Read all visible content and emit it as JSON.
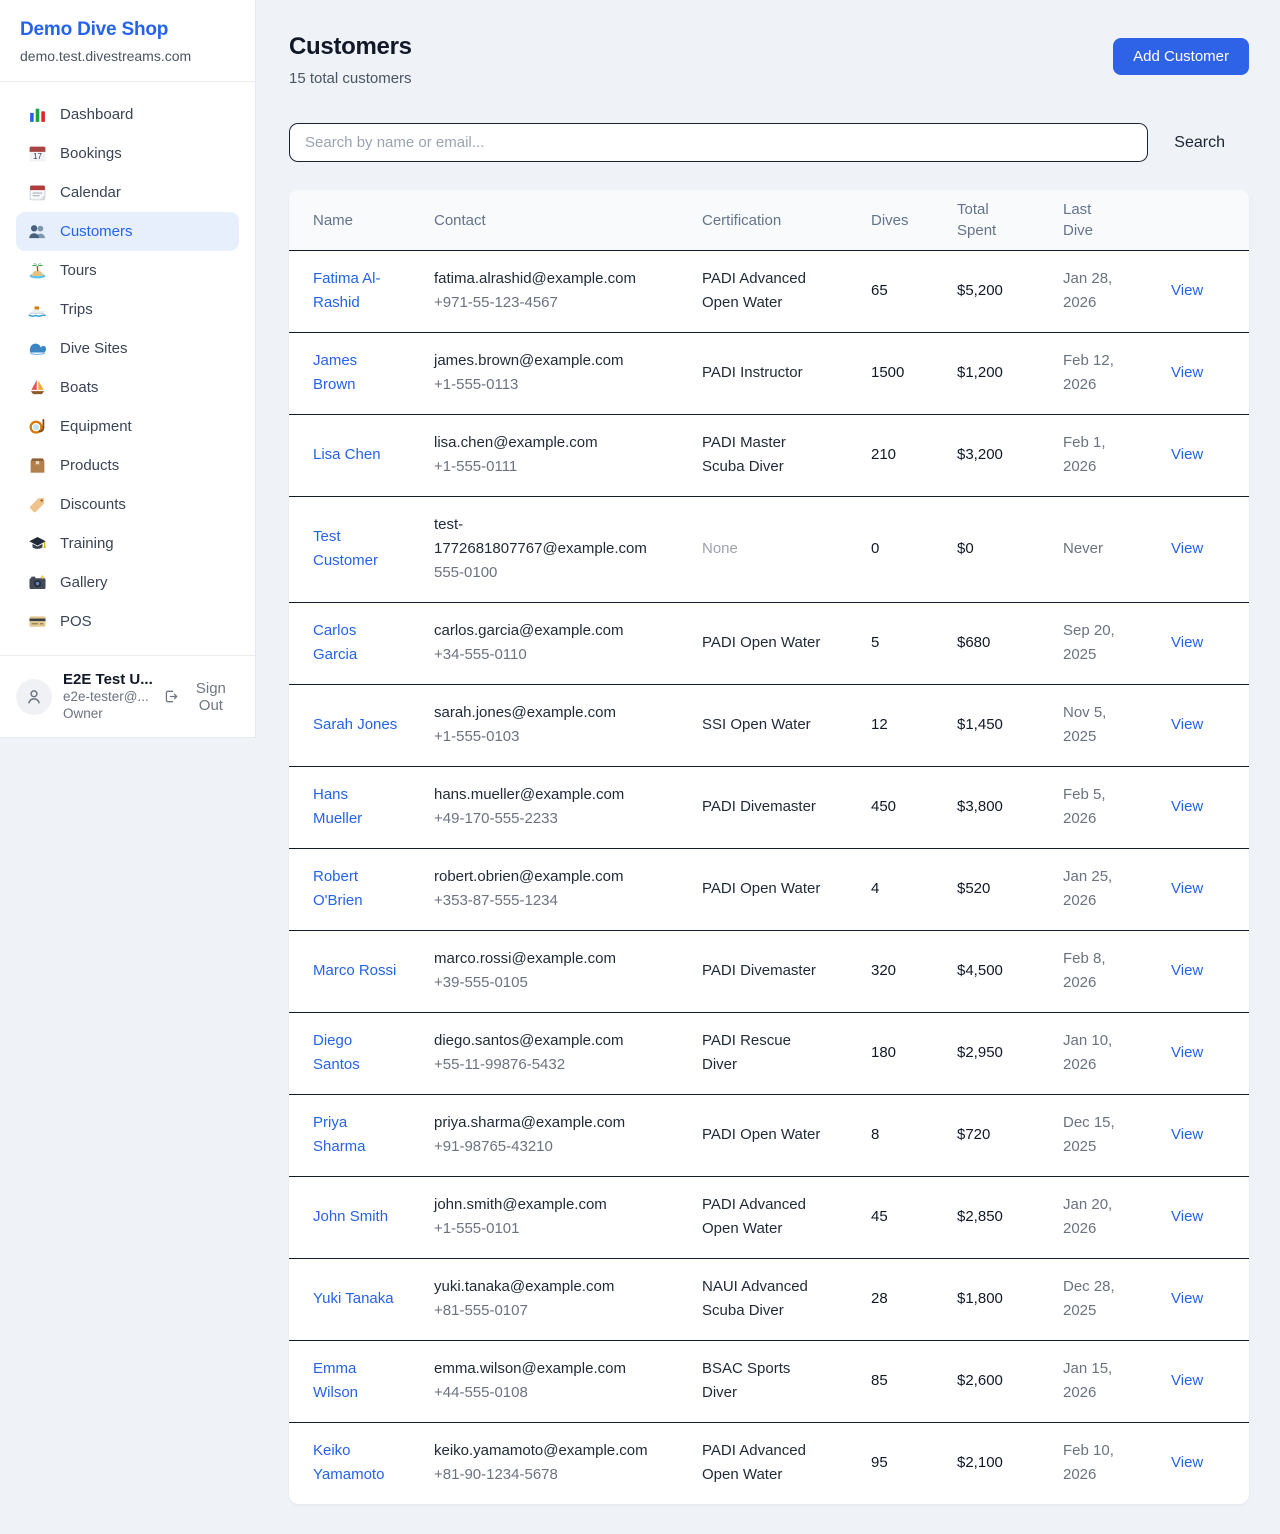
{
  "sidebar": {
    "title": "Demo Dive Shop",
    "domain": "demo.test.divestreams.com",
    "items": [
      {
        "icon": "bar-chart-icon",
        "label": "Dashboard",
        "active": false
      },
      {
        "icon": "calendar-date-icon",
        "label": "Bookings",
        "active": false
      },
      {
        "icon": "calendar-icon",
        "label": "Calendar",
        "active": false
      },
      {
        "icon": "people-icon",
        "label": "Customers",
        "active": true
      },
      {
        "icon": "island-icon",
        "label": "Tours",
        "active": false
      },
      {
        "icon": "speedboat-icon",
        "label": "Trips",
        "active": false
      },
      {
        "icon": "wave-icon",
        "label": "Dive Sites",
        "active": false
      },
      {
        "icon": "sailboat-icon",
        "label": "Boats",
        "active": false
      },
      {
        "icon": "dive-mask-icon",
        "label": "Equipment",
        "active": false
      },
      {
        "icon": "package-icon",
        "label": "Products",
        "active": false
      },
      {
        "icon": "tag-icon",
        "label": "Discounts",
        "active": false
      },
      {
        "icon": "graduation-cap-icon",
        "label": "Training",
        "active": false
      },
      {
        "icon": "camera-icon",
        "label": "Gallery",
        "active": false
      },
      {
        "icon": "credit-card-icon",
        "label": "POS",
        "active": false
      }
    ],
    "user": {
      "name": "E2E Test U...",
      "email": "e2e-tester@...",
      "role": "Owner",
      "sign_out_label": "Sign Out"
    }
  },
  "header": {
    "title": "Customers",
    "subtitle": "15 total customers",
    "add_button_label": "Add Customer"
  },
  "search": {
    "placeholder": "Search by name or email...",
    "button_label": "Search"
  },
  "table": {
    "columns": [
      "Name",
      "Contact",
      "Certification",
      "Dives",
      "Total\nSpent",
      "Last\nDive",
      ""
    ],
    "rows": [
      {
        "name": "Fatima Al-\nRashid",
        "email": "fatima.alrashid@example.com",
        "phone": "+971-55-123-4567",
        "certification": "PADI Advanced\nOpen Water",
        "dives": "65",
        "total_spent": "$5,200",
        "last_dive": "Jan 28,\n2026",
        "action": "View"
      },
      {
        "name": "James\nBrown",
        "email": "james.brown@example.com",
        "phone": "+1-555-0113",
        "certification": "PADI Instructor",
        "dives": "1500",
        "total_spent": "$1,200",
        "last_dive": "Feb 12,\n2026",
        "action": "View"
      },
      {
        "name": "Lisa Chen",
        "email": "lisa.chen@example.com",
        "phone": "+1-555-0111",
        "certification": "PADI Master\nScuba Diver",
        "dives": "210",
        "total_spent": "$3,200",
        "last_dive": "Feb 1,\n2026",
        "action": "View"
      },
      {
        "name": "Test\nCustomer",
        "email": "test-\n1772681807767@example.com",
        "phone": "555-0100",
        "certification": "None",
        "dives": "0",
        "total_spent": "$0",
        "last_dive": "Never",
        "action": "View"
      },
      {
        "name": "Carlos\nGarcia",
        "email": "carlos.garcia@example.com",
        "phone": "+34-555-0110",
        "certification": "PADI Open Water",
        "dives": "5",
        "total_spent": "$680",
        "last_dive": "Sep 20,\n2025",
        "action": "View"
      },
      {
        "name": "Sarah Jones",
        "email": "sarah.jones@example.com",
        "phone": "+1-555-0103",
        "certification": "SSI Open Water",
        "dives": "12",
        "total_spent": "$1,450",
        "last_dive": "Nov 5,\n2025",
        "action": "View"
      },
      {
        "name": "Hans\nMueller",
        "email": "hans.mueller@example.com",
        "phone": "+49-170-555-2233",
        "certification": "PADI Divemaster",
        "dives": "450",
        "total_spent": "$3,800",
        "last_dive": "Feb 5,\n2026",
        "action": "View"
      },
      {
        "name": "Robert\nO'Brien",
        "email": "robert.obrien@example.com",
        "phone": "+353-87-555-1234",
        "certification": "PADI Open Water",
        "dives": "4",
        "total_spent": "$520",
        "last_dive": "Jan 25,\n2026",
        "action": "View"
      },
      {
        "name": "Marco Rossi",
        "email": "marco.rossi@example.com",
        "phone": "+39-555-0105",
        "certification": "PADI Divemaster",
        "dives": "320",
        "total_spent": "$4,500",
        "last_dive": "Feb 8,\n2026",
        "action": "View"
      },
      {
        "name": "Diego\nSantos",
        "email": "diego.santos@example.com",
        "phone": "+55-11-99876-5432",
        "certification": "PADI Rescue\nDiver",
        "dives": "180",
        "total_spent": "$2,950",
        "last_dive": "Jan 10,\n2026",
        "action": "View"
      },
      {
        "name": "Priya\nSharma",
        "email": "priya.sharma@example.com",
        "phone": "+91-98765-43210",
        "certification": "PADI Open Water",
        "dives": "8",
        "total_spent": "$720",
        "last_dive": "Dec 15,\n2025",
        "action": "View"
      },
      {
        "name": "John Smith",
        "email": "john.smith@example.com",
        "phone": "+1-555-0101",
        "certification": "PADI Advanced\nOpen Water",
        "dives": "45",
        "total_spent": "$2,850",
        "last_dive": "Jan 20,\n2026",
        "action": "View"
      },
      {
        "name": "Yuki Tanaka",
        "email": "yuki.tanaka@example.com",
        "phone": "+81-555-0107",
        "certification": "NAUI Advanced\nScuba Diver",
        "dives": "28",
        "total_spent": "$1,800",
        "last_dive": "Dec 28,\n2025",
        "action": "View"
      },
      {
        "name": "Emma\nWilson",
        "email": "emma.wilson@example.com",
        "phone": "+44-555-0108",
        "certification": "BSAC Sports\nDiver",
        "dives": "85",
        "total_spent": "$2,600",
        "last_dive": "Jan 15,\n2026",
        "action": "View"
      },
      {
        "name": "Keiko\nYamamoto",
        "email": "keiko.yamamoto@example.com",
        "phone": "+81-90-1234-5678",
        "certification": "PADI Advanced\nOpen Water",
        "dives": "95",
        "total_spent": "$2,100",
        "last_dive": "Feb 10,\n2026",
        "action": "View"
      }
    ]
  },
  "colors": {
    "accent_blue": "#2563eb",
    "page_background": "#eff2f7",
    "active_nav_background": "#e7effc",
    "table_header_background": "#f8fafc",
    "row_divider": "#131c2b",
    "muted_text": "#6b7280"
  }
}
